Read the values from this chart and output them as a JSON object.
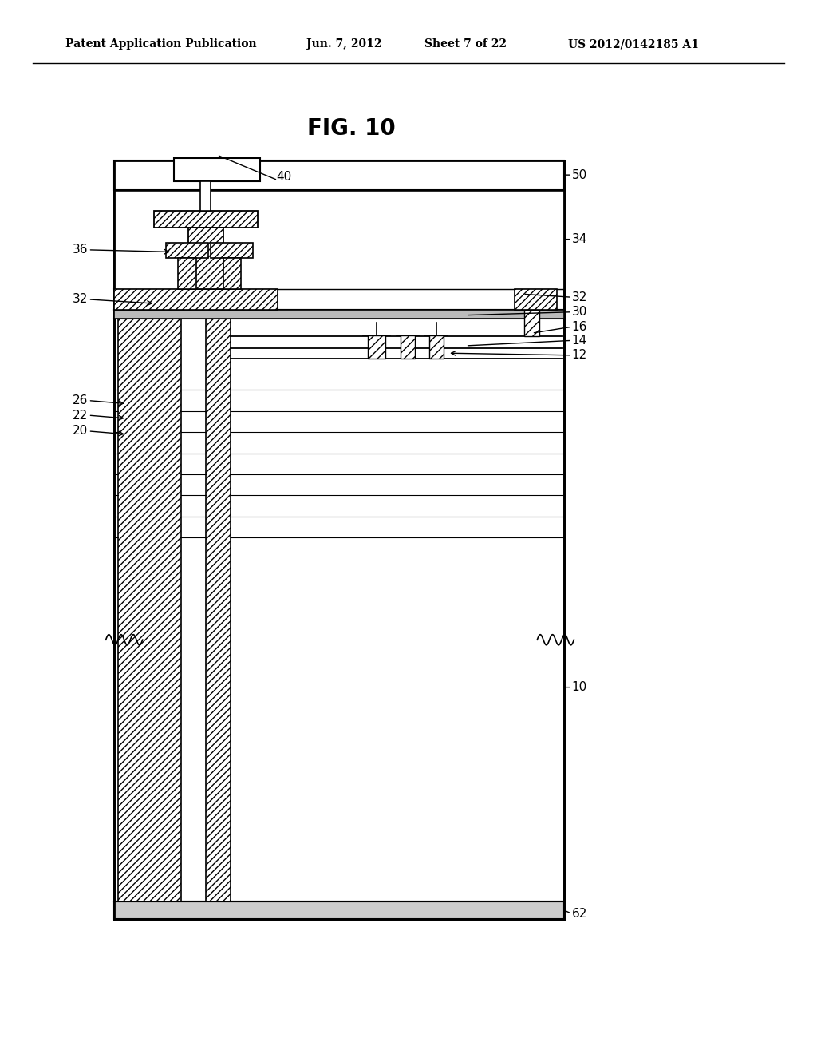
{
  "bg_color": "#ffffff",
  "line_color": "#000000",
  "header_text1": "Patent Application Publication",
  "header_text2": "Jun. 7, 2012",
  "header_text3": "Sheet 7 of 22",
  "header_text4": "US 2012/0142185 A1",
  "fig_label": "FIG. 10"
}
